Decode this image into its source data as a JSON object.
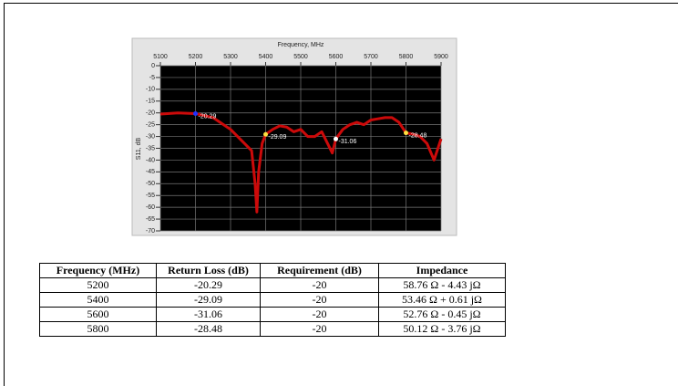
{
  "chart_data": {
    "type": "line",
    "title": "Frequency, MHz",
    "ylabel": "S11, dB",
    "x": [
      5100,
      5150,
      5200,
      5250,
      5280,
      5300,
      5320,
      5340,
      5360,
      5370,
      5375,
      5380,
      5390,
      5400,
      5420,
      5440,
      5460,
      5480,
      5500,
      5520,
      5540,
      5560,
      5580,
      5590,
      5600,
      5620,
      5640,
      5660,
      5680,
      5700,
      5720,
      5740,
      5760,
      5780,
      5800,
      5820,
      5840,
      5860,
      5880,
      5900
    ],
    "values": [
      -20.5,
      -20,
      -20.29,
      -22,
      -25,
      -27,
      -30,
      -33,
      -36,
      -50,
      -62,
      -45,
      -33,
      -29.09,
      -27,
      -25.5,
      -26,
      -28,
      -27,
      -30,
      -30,
      -28,
      -34,
      -37,
      -31.06,
      -27,
      -25,
      -24,
      -25,
      -23,
      -22.5,
      -22,
      -22,
      -24,
      -28.48,
      -29,
      -30,
      -33,
      -40,
      -31
    ],
    "color": "#cc0a0a",
    "markers": [
      {
        "x": 5200,
        "y": -20.29,
        "color": "#2030ff"
      },
      {
        "x": 5400,
        "y": -29.09,
        "color": "#ffe040"
      },
      {
        "x": 5600,
        "y": -31.06,
        "color": "#ffffff"
      },
      {
        "x": 5800,
        "y": -28.48,
        "color": "#ffe040"
      }
    ],
    "xlim": [
      5100,
      5900
    ],
    "xticks": [
      5100,
      5200,
      5300,
      5400,
      5500,
      5600,
      5700,
      5800,
      5900
    ],
    "ylim": [
      -70,
      0
    ],
    "yticks": [
      0,
      -5,
      -10,
      -15,
      -20,
      -25,
      -30,
      -35,
      -40,
      -45,
      -50,
      -55,
      -60,
      -65,
      -70
    ],
    "grid": true
  },
  "table": {
    "header": [
      "Frequency (MHz)",
      "Return Loss (dB)",
      "Requirement (dB)",
      "Impedance"
    ],
    "rows": [
      [
        "5200",
        "-20.29",
        "-20",
        "58.76 Ω - 4.43 jΩ"
      ],
      [
        "5400",
        "-29.09",
        "-20",
        "53.46 Ω + 0.61 jΩ"
      ],
      [
        "5600",
        "-31.06",
        "-20",
        "52.76 Ω - 0.45 jΩ"
      ],
      [
        "5800",
        "-28.48",
        "-20",
        "50.12 Ω - 3.76 jΩ"
      ]
    ]
  }
}
